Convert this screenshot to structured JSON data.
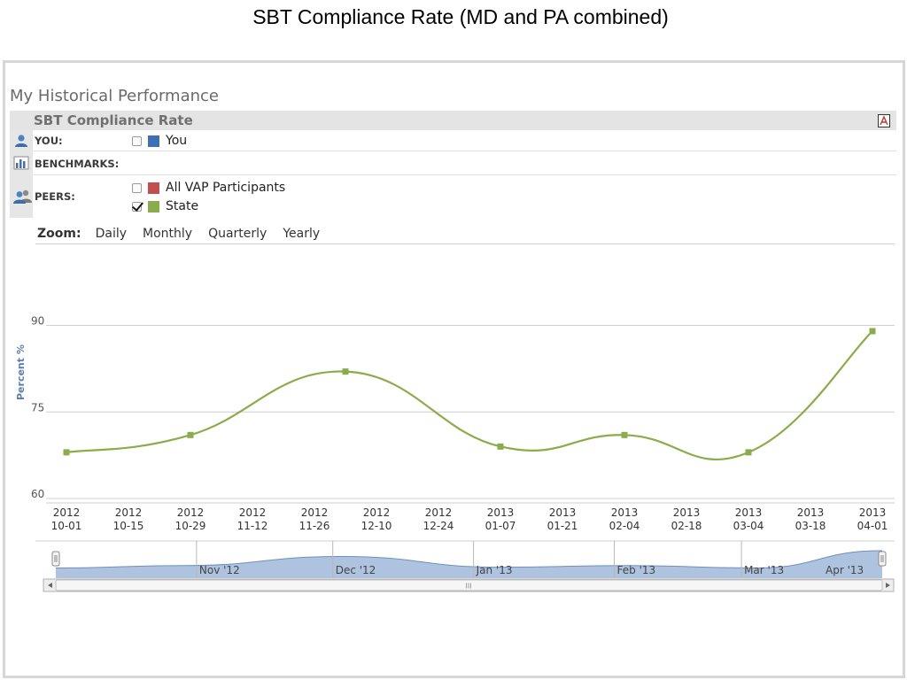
{
  "slide_title": "SBT Compliance Rate (MD and PA combined)",
  "panel": {
    "heading": "My Historical Performance",
    "legend_title": "SBT Compliance Rate",
    "pdf_icon": "pdf-export-icon",
    "rows": [
      {
        "label": "YOU:",
        "icon": "user-icon",
        "entries": [
          {
            "label": "You",
            "checked": false,
            "color": "#3f6fb0"
          }
        ]
      },
      {
        "label": "BENCHMARKS:",
        "icon": "benchmark-chart-icon",
        "entries": []
      },
      {
        "label": "PEERS:",
        "icon": "peers-icon",
        "entries": [
          {
            "label": "All VAP Participants",
            "checked": false,
            "color": "#c0504d"
          },
          {
            "label": "State",
            "checked": true,
            "color": "#8aac4a"
          }
        ]
      }
    ]
  },
  "zoom": {
    "label": "Zoom:",
    "options": [
      "Daily",
      "Monthly",
      "Quarterly",
      "Yearly"
    ]
  },
  "chart_data": {
    "type": "line",
    "ylabel": "Percent %",
    "xlabel": "",
    "ylim": [
      60,
      90
    ],
    "yticks": [
      60,
      75,
      90
    ],
    "grid": true,
    "x_ticks": [
      [
        "2012",
        "10-01"
      ],
      [
        "2012",
        "10-15"
      ],
      [
        "2012",
        "10-29"
      ],
      [
        "2012",
        "11-12"
      ],
      [
        "2012",
        "11-26"
      ],
      [
        "2012",
        "12-10"
      ],
      [
        "2012",
        "12-24"
      ],
      [
        "2013",
        "01-07"
      ],
      [
        "2013",
        "01-21"
      ],
      [
        "2013",
        "02-04"
      ],
      [
        "2013",
        "02-18"
      ],
      [
        "2013",
        "03-04"
      ],
      [
        "2013",
        "03-18"
      ],
      [
        "2013",
        "04-01"
      ]
    ],
    "series": [
      {
        "name": "State",
        "color": "#8aac4a",
        "points": [
          {
            "x": "2012-10-01",
            "y": 68
          },
          {
            "x": "2012-10-29",
            "y": 71
          },
          {
            "x": "2012-12-03",
            "y": 82
          },
          {
            "x": "2013-01-07",
            "y": 69
          },
          {
            "x": "2013-02-04",
            "y": 71
          },
          {
            "x": "2013-03-04",
            "y": 68
          },
          {
            "x": "2013-04-01",
            "y": 89
          }
        ]
      }
    ],
    "navigator": {
      "labels": [
        "Nov '12",
        "Dec '12",
        "Jan '13",
        "Feb '13",
        "Mar '13",
        "Apr '13"
      ],
      "fill": "#aec3df",
      "line": "#6f8fbd",
      "scroll_grip": "III"
    }
  }
}
